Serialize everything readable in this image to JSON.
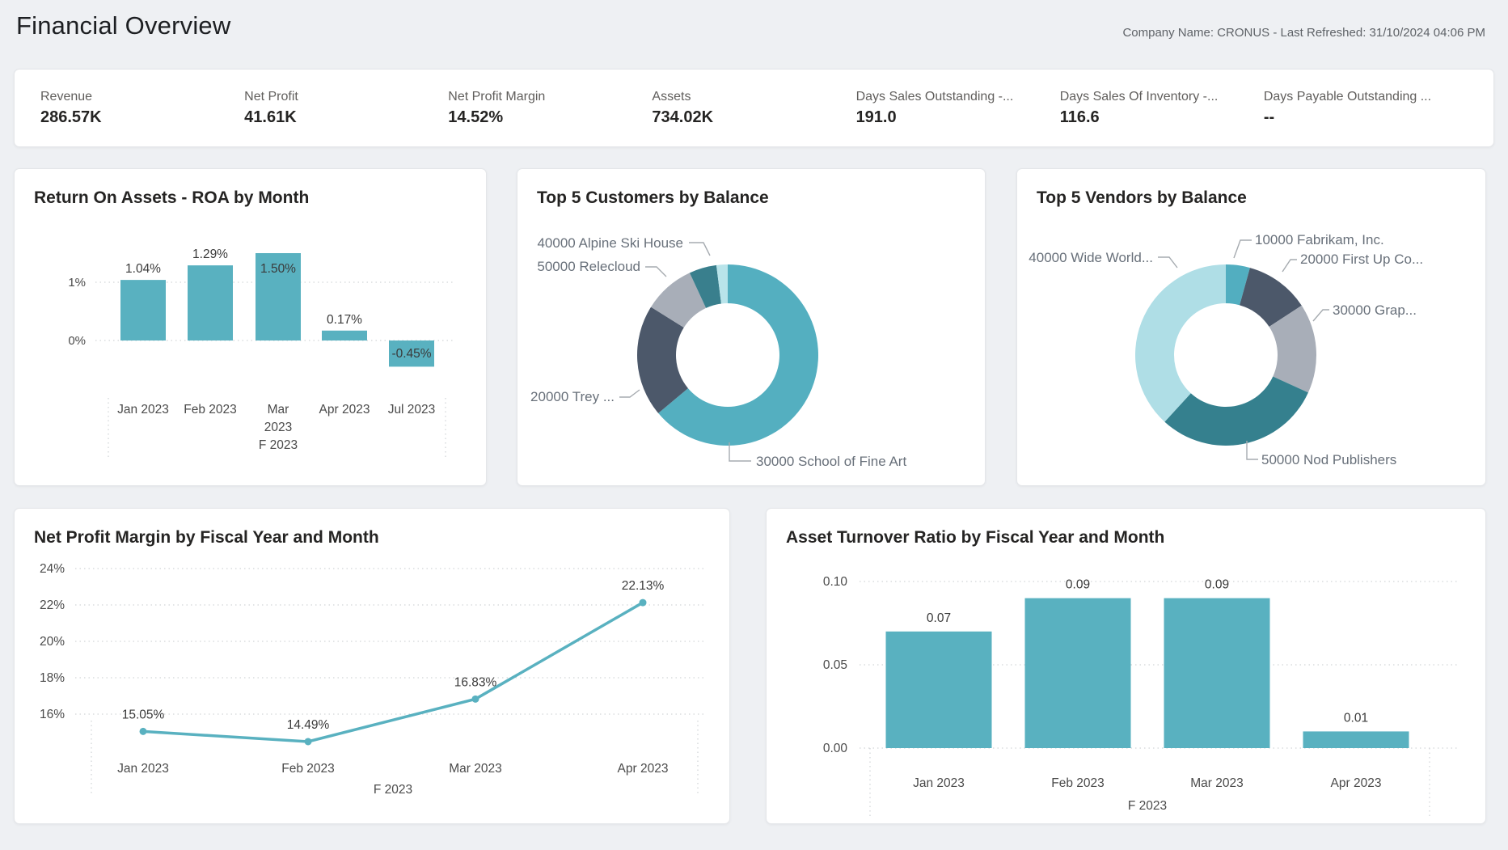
{
  "header": {
    "title": "Financial Overview",
    "meta": "Company Name: CRONUS - Last Refreshed: 31/10/2024 04:06 PM"
  },
  "kpis": [
    {
      "label": "Revenue",
      "value": "286.57K"
    },
    {
      "label": "Net Profit",
      "value": "41.61K"
    },
    {
      "label": "Net Profit Margin",
      "value": "14.52%"
    },
    {
      "label": "Assets",
      "value": "734.02K"
    },
    {
      "label": "Days Sales Outstanding -...",
      "value": "191.0"
    },
    {
      "label": "Days Sales Of Inventory -...",
      "value": "116.6"
    },
    {
      "label": "Days Payable Outstanding ...",
      "value": "--"
    }
  ],
  "colors": {
    "teal": "#59B1C0",
    "dark_teal": "#38808E",
    "slate": "#4C586A",
    "gray": "#A8AEB8",
    "pale_cyan": "#B2E0E8",
    "grid": "#d2d5d8",
    "axis_text": "#4a4a4a",
    "data_label": "#3a3a3a",
    "donut_label": "#68707a",
    "leader_line": "#a6abb0"
  },
  "chart_data": [
    {
      "type": "bar",
      "title": "Return On Assets - ROA by Month",
      "categories": [
        "Jan 2023",
        "Feb 2023",
        "Mar 2023",
        "Apr 2023",
        "Jul 2023"
      ],
      "values": [
        1.04,
        1.29,
        1.5,
        0.17,
        -0.45
      ],
      "data_labels": [
        "1.04%",
        "1.29%",
        "1.50%",
        "0.17%",
        "-0.45%"
      ],
      "yticks": [
        {
          "label": "1%",
          "value": 1
        },
        {
          "label": "0%",
          "value": 0
        }
      ],
      "ylim": [
        -0.6,
        1.65
      ],
      "x_group_label": "F 2023",
      "grid": "dotted"
    },
    {
      "type": "pie",
      "title": "Top 5 Customers by Balance",
      "slices": [
        {
          "label": "30000 School of Fine Art",
          "pct": 63.9,
          "color": "#54AFC0"
        },
        {
          "label": "20000 Trey ...",
          "pct": 20.0,
          "color": "#4C586A"
        },
        {
          "label": "50000 Relecloud",
          "pct": 9.2,
          "color": "#A8AEB8"
        },
        {
          "label": "40000 Alpine Ski House",
          "pct": 4.9,
          "color": "#397F8D"
        },
        {
          "label": "",
          "pct": 2.0,
          "color": "#B9E4EA"
        }
      ],
      "legend_position": "callout-labels"
    },
    {
      "type": "pie",
      "title": "Top 5 Vendors by Balance",
      "slices": [
        {
          "label": "10000 Fabrikam, Inc.",
          "pct": 4.3,
          "color": "#52AEC0"
        },
        {
          "label": "20000 First Up Co...",
          "pct": 11.5,
          "color": "#4C586A"
        },
        {
          "label": "30000 Grap...",
          "pct": 16.0,
          "color": "#A8AEB8"
        },
        {
          "label": "50000 Nod Publishers",
          "pct": 30.0,
          "color": "#35808E"
        },
        {
          "label": "40000 Wide World...",
          "pct": 38.2,
          "color": "#AFDEE6"
        }
      ],
      "legend_position": "callout-labels"
    },
    {
      "type": "line",
      "title": "Net Profit Margin by Fiscal Year and Month",
      "categories": [
        "Jan 2023",
        "Feb 2023",
        "Mar 2023",
        "Apr 2023"
      ],
      "values": [
        15.05,
        14.49,
        16.83,
        22.13
      ],
      "data_labels": [
        "15.05%",
        "14.49%",
        "16.83%",
        "22.13%"
      ],
      "yticks": [
        {
          "label": "24%",
          "value": 24
        },
        {
          "label": "22%",
          "value": 22
        },
        {
          "label": "20%",
          "value": 20
        },
        {
          "label": "18%",
          "value": 18
        },
        {
          "label": "16%",
          "value": 16
        }
      ],
      "ylim": [
        14,
        24.5
      ],
      "x_group_label": "F 2023",
      "grid": "dotted"
    },
    {
      "type": "bar",
      "title": "Asset Turnover Ratio by Fiscal Year and Month",
      "categories": [
        "Jan 2023",
        "Feb 2023",
        "Mar 2023",
        "Apr 2023"
      ],
      "values": [
        0.07,
        0.09,
        0.09,
        0.01
      ],
      "data_labels": [
        "0.07",
        "0.09",
        "0.09",
        "0.01"
      ],
      "yticks": [
        {
          "label": "0.10",
          "value": 0.1
        },
        {
          "label": "0.05",
          "value": 0.05
        },
        {
          "label": "0.00",
          "value": 0.0
        }
      ],
      "ylim": [
        0,
        0.105
      ],
      "x_group_label": "F 2023",
      "grid": "dotted"
    }
  ]
}
